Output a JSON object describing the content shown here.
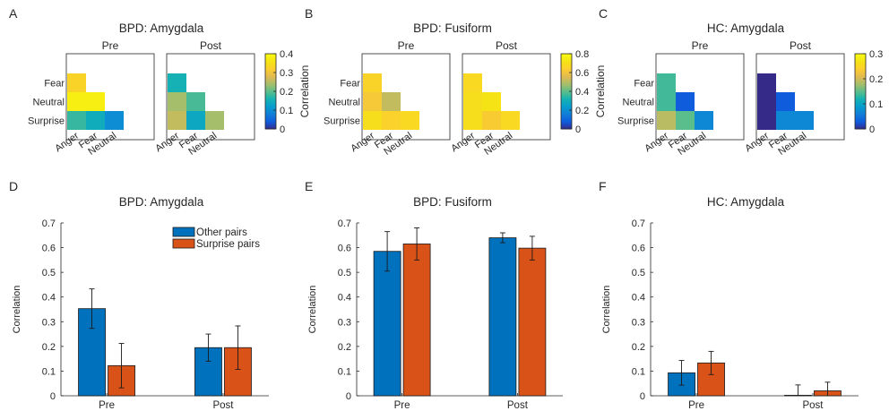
{
  "chart_data": [
    {
      "panel": "A",
      "type": "heatmap",
      "title": "BPD: Amygdala",
      "colorbar_label": "Correlation",
      "clim": [
        0,
        0.4
      ],
      "ticks": [
        0,
        0.1,
        0.2,
        0.3,
        0.4
      ],
      "row_labels": [
        "Fear",
        "Neutral",
        "Surprise"
      ],
      "col_labels": [
        "Anger",
        "Fear",
        "Neutral"
      ],
      "maps": [
        {
          "name": "Pre",
          "values": [
            [
              0.33,
              null,
              null
            ],
            [
              0.38,
              0.38,
              null
            ],
            [
              0.18,
              0.15,
              0.1
            ]
          ]
        },
        {
          "name": "Post",
          "values": [
            [
              0.16,
              null,
              null
            ],
            [
              0.24,
              0.19,
              null
            ],
            [
              0.26,
              0.14,
              0.24
            ]
          ]
        }
      ]
    },
    {
      "panel": "B",
      "type": "heatmap",
      "title": "BPD: Fusiform",
      "colorbar_label": "Correlation",
      "clim": [
        0,
        0.8
      ],
      "ticks": [
        0,
        0.2,
        0.4,
        0.6,
        0.8
      ],
      "row_labels": [
        "Fear",
        "Neutral",
        "Surprise"
      ],
      "col_labels": [
        "Anger",
        "Fear",
        "Neutral"
      ],
      "maps": [
        {
          "name": "Pre",
          "values": [
            [
              0.66,
              null,
              null
            ],
            [
              0.62,
              0.52,
              null
            ],
            [
              0.7,
              0.65,
              0.68
            ]
          ]
        },
        {
          "name": "Post",
          "values": [
            [
              0.68,
              null,
              null
            ],
            [
              0.7,
              0.72,
              null
            ],
            [
              0.7,
              0.63,
              0.68
            ]
          ]
        }
      ]
    },
    {
      "panel": "C",
      "type": "heatmap",
      "title": "HC: Amygdala",
      "colorbar_label": "Correlation",
      "clim": [
        0,
        0.3
      ],
      "ticks": [
        0,
        0.1,
        0.2,
        0.3
      ],
      "row_labels": [
        "Fear",
        "Neutral",
        "Surprise"
      ],
      "col_labels": [
        "Anger",
        "Fear",
        "Neutral"
      ],
      "maps": [
        {
          "name": "Pre",
          "values": [
            [
              0.14,
              null,
              null
            ],
            [
              0.14,
              0.03,
              null
            ],
            [
              0.19,
              0.15,
              0.07
            ]
          ]
        },
        {
          "name": "Post",
          "values": [
            [
              0.0,
              null,
              null
            ],
            [
              0.0,
              0.03,
              null
            ],
            [
              0.0,
              0.07,
              0.07
            ]
          ]
        }
      ]
    },
    {
      "panel": "D",
      "type": "bar",
      "title": "BPD: Amygdala",
      "ylabel": "Correlation",
      "ylim": [
        0,
        0.7
      ],
      "yticks": [
        0,
        0.1,
        0.2,
        0.3,
        0.4,
        0.5,
        0.6,
        0.7
      ],
      "categories": [
        "Pre",
        "Post"
      ],
      "legend": "inside-top-right",
      "series": [
        {
          "name": "Other pairs",
          "color": "#0072BD",
          "values": [
            0.353,
            0.195
          ],
          "err": [
            0.08,
            0.055
          ]
        },
        {
          "name": "Surprise pairs",
          "color": "#D95319",
          "values": [
            0.122,
            0.195
          ],
          "err": [
            0.09,
            0.088
          ]
        }
      ]
    },
    {
      "panel": "E",
      "type": "bar",
      "title": "BPD: Fusiform",
      "ylabel": "Correlation",
      "ylim": [
        0,
        0.7
      ],
      "yticks": [
        0,
        0.1,
        0.2,
        0.3,
        0.4,
        0.5,
        0.6,
        0.7
      ],
      "categories": [
        "Pre",
        "Post"
      ],
      "series": [
        {
          "color": "#0072BD",
          "values": [
            0.585,
            0.64
          ],
          "err": [
            0.08,
            0.02
          ]
        },
        {
          "color": "#D95319",
          "values": [
            0.615,
            0.598
          ],
          "err": [
            0.065,
            0.048
          ]
        }
      ]
    },
    {
      "panel": "F",
      "type": "bar",
      "title": "HC: Amygdala",
      "ylabel": "Correlation",
      "ylim": [
        0,
        0.7
      ],
      "yticks": [
        0,
        0.1,
        0.2,
        0.3,
        0.4,
        0.5,
        0.6,
        0.7
      ],
      "categories": [
        "Pre",
        "Post"
      ],
      "series": [
        {
          "color": "#0072BD",
          "values": [
            0.093,
            0.002
          ],
          "err": [
            0.05,
            0.042
          ]
        },
        {
          "color": "#D95319",
          "values": [
            0.133,
            0.02
          ],
          "err": [
            0.047,
            0.035
          ]
        }
      ]
    }
  ]
}
